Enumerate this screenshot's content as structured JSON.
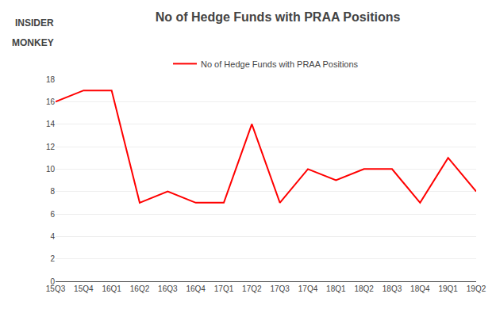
{
  "chart_data": {
    "type": "line",
    "title": "No of Hedge Funds with PRAA Positions",
    "annotations": [
      "INSIDER",
      "MONKEY"
    ],
    "categories": [
      "15Q3",
      "15Q4",
      "16Q1",
      "16Q2",
      "16Q3",
      "16Q4",
      "17Q1",
      "17Q2",
      "17Q3",
      "17Q4",
      "18Q1",
      "18Q2",
      "18Q3",
      "18Q4",
      "19Q1",
      "19Q2"
    ],
    "series": [
      {
        "name": "No of Hedge Funds with PRAA Positions",
        "color": "#ff0000",
        "values": [
          16,
          17,
          17,
          7,
          8,
          7,
          7,
          14,
          7,
          10,
          9,
          10,
          10,
          7,
          11,
          8
        ]
      }
    ],
    "ylim": [
      0,
      18
    ],
    "yticks": [
      0,
      2,
      4,
      6,
      8,
      10,
      12,
      14,
      16,
      18
    ],
    "grid": true,
    "legend": "top"
  }
}
